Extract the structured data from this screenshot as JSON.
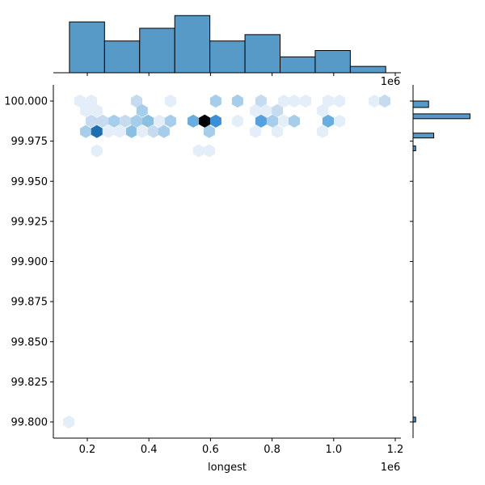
{
  "chart_data": {
    "type": "hexbin-jointplot",
    "xlabel": "longest",
    "ylabel": "",
    "x_offset_label": "1e6",
    "xlim": [
      0.09,
      1.22
    ],
    "ylim": [
      99.79,
      100.01
    ],
    "x_ticks": [
      0.2,
      0.4,
      0.6,
      0.8,
      1.0,
      1.2
    ],
    "x_tick_labels": [
      "0.2",
      "0.4",
      "0.6",
      "0.8",
      "1.0",
      "1.2"
    ],
    "y_ticks": [
      100.0,
      99.975,
      99.95,
      99.925,
      99.9,
      99.875,
      99.85,
      99.825,
      99.8
    ],
    "y_tick_labels": [
      "100.000",
      "99.975",
      "99.950",
      "99.925",
      "99.900",
      "99.875",
      "99.850",
      "99.825",
      "99.800"
    ],
    "grid": false,
    "colormap": "Blues",
    "hexes": [
      [
        0.176,
        100.0,
        1
      ],
      [
        0.213,
        100.0,
        1
      ],
      [
        0.36,
        100.0,
        2
      ],
      [
        0.47,
        100.0,
        1
      ],
      [
        0.617,
        100.0,
        3
      ],
      [
        0.688,
        100.0,
        3
      ],
      [
        0.764,
        100.0,
        2
      ],
      [
        0.838,
        100.0,
        1
      ],
      [
        0.872,
        100.0,
        1
      ],
      [
        0.909,
        100.0,
        1
      ],
      [
        0.982,
        100.0,
        1
      ],
      [
        1.019,
        100.0,
        1
      ],
      [
        1.132,
        100.0,
        1
      ],
      [
        1.166,
        100.0,
        2
      ],
      [
        0.195,
        99.994,
        1
      ],
      [
        0.231,
        99.994,
        1
      ],
      [
        0.378,
        99.994,
        3
      ],
      [
        0.746,
        99.994,
        1
      ],
      [
        0.78,
        99.994,
        1
      ],
      [
        0.817,
        99.994,
        2
      ],
      [
        0.964,
        99.994,
        1
      ],
      [
        0.213,
        99.9875,
        2
      ],
      [
        0.25,
        99.9875,
        2
      ],
      [
        0.287,
        99.9875,
        3
      ],
      [
        0.323,
        99.9875,
        2
      ],
      [
        0.36,
        99.9875,
        3
      ],
      [
        0.397,
        99.9875,
        4
      ],
      [
        0.434,
        99.9875,
        1
      ],
      [
        0.47,
        99.9875,
        3
      ],
      [
        0.544,
        99.9875,
        5
      ],
      [
        0.581,
        99.9875,
        11
      ],
      [
        0.617,
        99.9875,
        7
      ],
      [
        0.688,
        99.9875,
        1
      ],
      [
        0.764,
        99.9875,
        6
      ],
      [
        0.801,
        99.9875,
        3
      ],
      [
        0.838,
        99.9875,
        1
      ],
      [
        0.872,
        99.9875,
        3
      ],
      [
        0.982,
        99.9875,
        5
      ],
      [
        1.019,
        99.9875,
        1
      ],
      [
        0.195,
        99.981,
        3
      ],
      [
        0.231,
        99.981,
        9
      ],
      [
        0.268,
        99.981,
        1
      ],
      [
        0.305,
        99.981,
        1
      ],
      [
        0.344,
        99.981,
        4
      ],
      [
        0.378,
        99.981,
        1
      ],
      [
        0.415,
        99.981,
        2
      ],
      [
        0.449,
        99.981,
        3
      ],
      [
        0.596,
        99.981,
        3
      ],
      [
        0.746,
        99.981,
        1
      ],
      [
        0.817,
        99.981,
        1
      ],
      [
        0.964,
        99.981,
        1
      ],
      [
        0.231,
        99.969,
        1
      ],
      [
        0.562,
        99.969,
        1
      ],
      [
        0.596,
        99.969,
        1
      ],
      [
        0.14,
        99.8,
        1
      ]
    ],
    "top_histogram": {
      "bin_edges": [
        0.142,
        0.256,
        0.37,
        0.484,
        0.598,
        0.712,
        0.826,
        0.94,
        1.054,
        1.169
      ],
      "counts": [
        16,
        10,
        14,
        18,
        10,
        12,
        5,
        7,
        2
      ],
      "color": "#5799c7"
    },
    "right_histogram": {
      "bins": [
        [
          99.996,
          100.0,
          6
        ],
        [
          99.989,
          99.992,
          22
        ],
        [
          99.977,
          99.98,
          8
        ],
        [
          99.969,
          99.972,
          1
        ],
        [
          99.8,
          99.803,
          1
        ]
      ],
      "color": "#5799c7"
    }
  }
}
